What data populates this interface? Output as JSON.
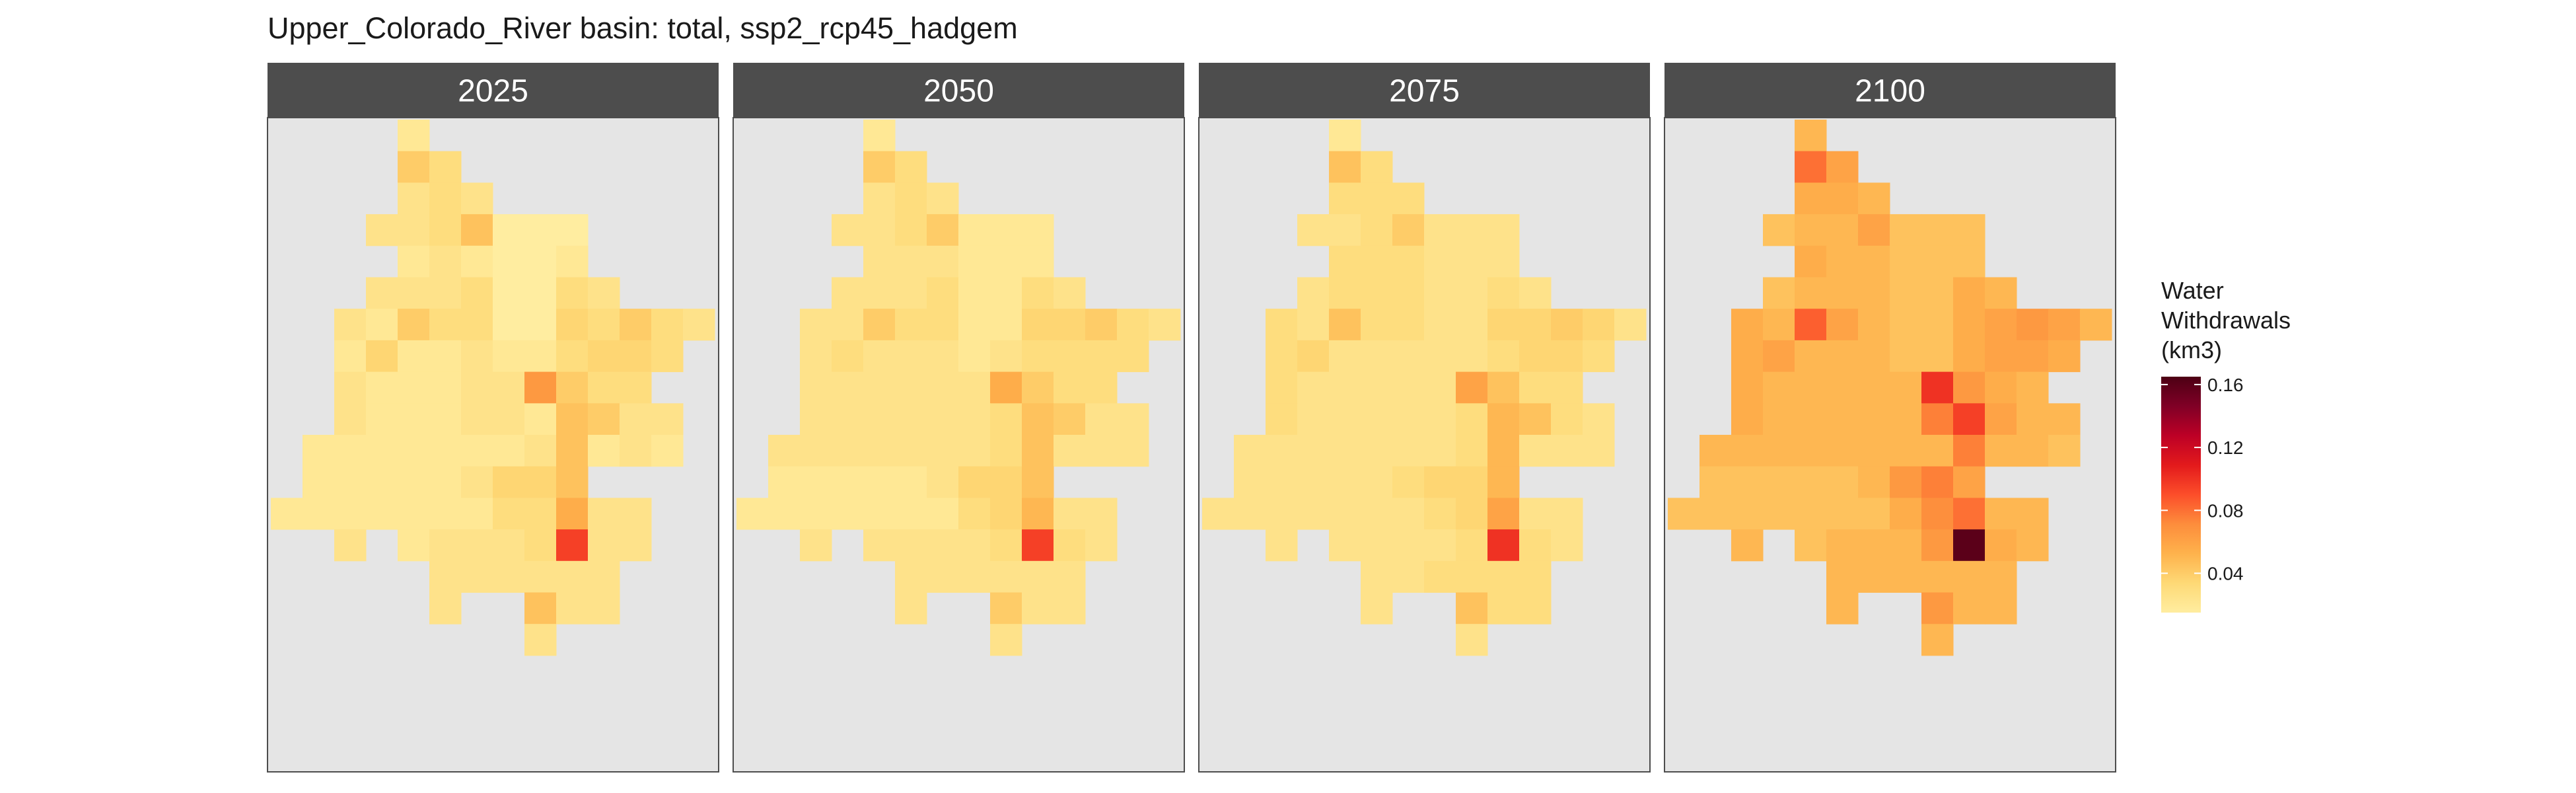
{
  "chart_data": {
    "type": "heatmap",
    "title": "Upper_Colorado_River basin: total, ssp2_rcp45_hadgem",
    "panels": [
      {
        "label": "2025",
        "values": [
          [
            null,
            null,
            null,
            null,
            0.02,
            null,
            null,
            null,
            null,
            null,
            null,
            null
          ],
          [
            null,
            null,
            null,
            null,
            0.04,
            0.03,
            null,
            null,
            null,
            null,
            null,
            null
          ],
          [
            null,
            null,
            null,
            null,
            0.025,
            0.03,
            0.025,
            null,
            null,
            null,
            null,
            null
          ],
          [
            null,
            null,
            null,
            0.025,
            0.025,
            0.03,
            0.045,
            0.015,
            0.015,
            0.015,
            null,
            null
          ],
          [
            null,
            null,
            null,
            null,
            0.02,
            0.025,
            0.02,
            0.015,
            0.015,
            0.02,
            null,
            null
          ],
          [
            null,
            null,
            null,
            0.025,
            0.025,
            0.025,
            0.03,
            0.015,
            0.015,
            0.03,
            0.025,
            null
          ],
          [
            null,
            null,
            0.025,
            0.02,
            0.04,
            0.03,
            0.03,
            0.015,
            0.015,
            0.035,
            0.03,
            0.04,
            0.03,
            0.025
          ],
          [
            null,
            null,
            0.02,
            0.035,
            0.02,
            0.02,
            0.025,
            0.02,
            0.02,
            0.03,
            0.035,
            0.035,
            0.03,
            null
          ],
          [
            null,
            null,
            0.025,
            0.02,
            0.02,
            0.02,
            0.025,
            0.025,
            0.065,
            0.04,
            0.03,
            0.03,
            null,
            null
          ],
          [
            null,
            null,
            0.025,
            0.02,
            0.02,
            0.02,
            0.025,
            0.025,
            0.02,
            0.045,
            0.04,
            0.025,
            0.025,
            null
          ],
          [
            null,
            0.02,
            0.02,
            0.02,
            0.02,
            0.02,
            0.02,
            0.02,
            0.025,
            0.045,
            0.02,
            0.025,
            0.02,
            null
          ],
          [
            null,
            0.02,
            0.02,
            0.02,
            0.02,
            0.02,
            0.025,
            0.035,
            0.035,
            0.045,
            null,
            null,
            null,
            null
          ],
          [
            0.02,
            0.02,
            0.02,
            0.02,
            0.02,
            0.02,
            0.02,
            0.03,
            0.03,
            0.055,
            0.025,
            0.025,
            null,
            null
          ],
          [
            null,
            null,
            0.025,
            null,
            0.02,
            0.025,
            0.025,
            0.025,
            0.03,
            0.095,
            0.025,
            0.025,
            null,
            null
          ],
          [
            null,
            null,
            null,
            null,
            null,
            0.025,
            0.025,
            0.025,
            0.025,
            0.025,
            0.025,
            null,
            null,
            null
          ],
          [
            null,
            null,
            null,
            null,
            null,
            0.025,
            null,
            null,
            0.045,
            0.025,
            0.025,
            null,
            null,
            null
          ],
          [
            null,
            null,
            null,
            null,
            null,
            null,
            null,
            null,
            0.025,
            null,
            null,
            null,
            null,
            null
          ]
        ]
      },
      {
        "label": "2050",
        "values": [
          [
            null,
            null,
            null,
            null,
            0.02,
            null,
            null,
            null,
            null,
            null,
            null,
            null
          ],
          [
            null,
            null,
            null,
            null,
            0.04,
            0.03,
            null,
            null,
            null,
            null,
            null,
            null
          ],
          [
            null,
            null,
            null,
            null,
            0.025,
            0.03,
            0.025,
            null,
            null,
            null,
            null,
            null
          ],
          [
            null,
            null,
            null,
            0.025,
            0.025,
            0.03,
            0.04,
            0.02,
            0.02,
            0.02,
            null,
            null
          ],
          [
            null,
            null,
            null,
            null,
            0.025,
            0.025,
            0.025,
            0.02,
            0.02,
            0.02,
            null,
            null
          ],
          [
            null,
            null,
            null,
            0.025,
            0.025,
            0.025,
            0.03,
            0.02,
            0.02,
            0.03,
            0.025,
            null
          ],
          [
            null,
            null,
            0.025,
            0.025,
            0.04,
            0.03,
            0.03,
            0.02,
            0.02,
            0.035,
            0.035,
            0.04,
            0.03,
            0.025
          ],
          [
            null,
            null,
            0.025,
            0.03,
            0.025,
            0.025,
            0.025,
            0.02,
            0.025,
            0.03,
            0.03,
            0.03,
            0.03,
            null
          ],
          [
            null,
            null,
            0.025,
            0.025,
            0.025,
            0.025,
            0.025,
            0.025,
            0.055,
            0.04,
            0.03,
            0.03,
            null,
            null
          ],
          [
            null,
            null,
            0.025,
            0.025,
            0.025,
            0.025,
            0.025,
            0.025,
            0.03,
            0.045,
            0.04,
            0.025,
            0.025,
            null
          ],
          [
            null,
            0.025,
            0.025,
            0.025,
            0.025,
            0.025,
            0.025,
            0.025,
            0.03,
            0.045,
            0.025,
            0.025,
            0.025,
            null
          ],
          [
            null,
            0.02,
            0.02,
            0.02,
            0.02,
            0.02,
            0.025,
            0.035,
            0.035,
            0.045,
            null,
            null,
            null,
            null
          ],
          [
            0.02,
            0.02,
            0.02,
            0.02,
            0.02,
            0.02,
            0.02,
            0.03,
            0.035,
            0.05,
            0.025,
            0.025,
            null,
            null
          ],
          [
            null,
            null,
            0.025,
            null,
            0.025,
            0.025,
            0.025,
            0.025,
            0.03,
            0.095,
            0.03,
            0.025,
            null,
            null
          ],
          [
            null,
            null,
            null,
            null,
            null,
            0.025,
            0.025,
            0.025,
            0.025,
            0.025,
            0.025,
            null,
            null,
            null
          ],
          [
            null,
            null,
            null,
            null,
            null,
            0.025,
            null,
            null,
            0.04,
            0.025,
            0.025,
            null,
            null,
            null
          ],
          [
            null,
            null,
            null,
            null,
            null,
            null,
            null,
            null,
            0.025,
            null,
            null,
            null,
            null,
            null
          ]
        ]
      },
      {
        "label": "2075",
        "values": [
          [
            null,
            null,
            null,
            null,
            0.02,
            null,
            null,
            null,
            null,
            null,
            null,
            null
          ],
          [
            null,
            null,
            null,
            null,
            0.045,
            0.03,
            null,
            null,
            null,
            null,
            null,
            null
          ],
          [
            null,
            null,
            null,
            null,
            0.03,
            0.03,
            0.03,
            null,
            null,
            null,
            null,
            null
          ],
          [
            null,
            null,
            null,
            0.025,
            0.025,
            0.03,
            0.04,
            0.025,
            0.025,
            0.025,
            null,
            null
          ],
          [
            null,
            null,
            null,
            null,
            0.03,
            0.03,
            0.03,
            0.025,
            0.025,
            0.025,
            null,
            null
          ],
          [
            null,
            null,
            null,
            0.025,
            0.03,
            0.03,
            0.03,
            0.025,
            0.025,
            0.03,
            0.025,
            null
          ],
          [
            null,
            null,
            0.03,
            0.025,
            0.045,
            0.03,
            0.03,
            0.025,
            0.025,
            0.035,
            0.035,
            0.04,
            0.035,
            0.025
          ],
          [
            null,
            null,
            0.03,
            0.035,
            0.025,
            0.025,
            0.025,
            0.025,
            0.025,
            0.03,
            0.035,
            0.035,
            0.03,
            null
          ],
          [
            null,
            null,
            0.03,
            0.025,
            0.025,
            0.025,
            0.025,
            0.025,
            0.06,
            0.045,
            0.03,
            0.03,
            null,
            null
          ],
          [
            null,
            null,
            0.03,
            0.025,
            0.025,
            0.025,
            0.025,
            0.025,
            0.03,
            0.05,
            0.045,
            0.03,
            0.025,
            null
          ],
          [
            null,
            0.025,
            0.025,
            0.025,
            0.025,
            0.025,
            0.025,
            0.025,
            0.03,
            0.05,
            0.025,
            0.025,
            0.025,
            null
          ],
          [
            null,
            0.025,
            0.025,
            0.025,
            0.025,
            0.025,
            0.03,
            0.035,
            0.035,
            0.05,
            null,
            null,
            null,
            null
          ],
          [
            0.025,
            0.025,
            0.025,
            0.025,
            0.025,
            0.025,
            0.025,
            0.03,
            0.035,
            0.06,
            0.025,
            0.025,
            null,
            null
          ],
          [
            null,
            null,
            0.025,
            null,
            0.025,
            0.025,
            0.025,
            0.025,
            0.03,
            0.1,
            0.03,
            0.025,
            null,
            null
          ],
          [
            null,
            null,
            null,
            null,
            null,
            0.025,
            0.025,
            0.03,
            0.03,
            0.03,
            0.03,
            null,
            null,
            null
          ],
          [
            null,
            null,
            null,
            null,
            null,
            0.025,
            null,
            null,
            0.045,
            0.03,
            0.03,
            null,
            null,
            null
          ],
          [
            null,
            null,
            null,
            null,
            null,
            null,
            null,
            null,
            0.025,
            null,
            null,
            null,
            null,
            null
          ]
        ]
      },
      {
        "label": "2100",
        "values": [
          [
            null,
            null,
            null,
            null,
            0.05,
            null,
            null,
            null,
            null,
            null,
            null,
            null
          ],
          [
            null,
            null,
            null,
            null,
            0.08,
            0.06,
            null,
            null,
            null,
            null,
            null,
            null
          ],
          [
            null,
            null,
            null,
            null,
            0.055,
            0.055,
            0.05,
            null,
            null,
            null,
            null,
            null
          ],
          [
            null,
            null,
            null,
            0.045,
            0.05,
            0.05,
            0.06,
            0.045,
            0.045,
            0.045,
            null,
            null
          ],
          [
            null,
            null,
            null,
            null,
            0.055,
            0.05,
            0.05,
            0.045,
            0.045,
            0.045,
            null,
            null
          ],
          [
            null,
            null,
            null,
            0.045,
            0.05,
            0.05,
            0.05,
            0.045,
            0.045,
            0.055,
            0.05,
            null
          ],
          [
            null,
            null,
            0.055,
            0.05,
            0.085,
            0.06,
            0.05,
            0.045,
            0.045,
            0.055,
            0.06,
            0.065,
            0.06,
            0.05
          ],
          [
            null,
            null,
            0.055,
            0.06,
            0.05,
            0.05,
            0.05,
            0.045,
            0.045,
            0.055,
            0.06,
            0.06,
            0.055,
            null
          ],
          [
            null,
            null,
            0.055,
            0.05,
            0.05,
            0.05,
            0.05,
            0.05,
            0.1,
            0.065,
            0.055,
            0.05,
            null,
            null
          ],
          [
            null,
            null,
            0.055,
            0.05,
            0.05,
            0.05,
            0.05,
            0.05,
            0.075,
            0.095,
            0.06,
            0.05,
            0.05,
            null
          ],
          [
            null,
            0.05,
            0.05,
            0.05,
            0.05,
            0.05,
            0.05,
            0.05,
            0.05,
            0.075,
            0.05,
            0.05,
            0.045,
            null
          ],
          [
            null,
            0.045,
            0.045,
            0.045,
            0.045,
            0.045,
            0.05,
            0.065,
            0.075,
            0.06,
            null,
            null,
            null,
            null
          ],
          [
            0.045,
            0.045,
            0.045,
            0.045,
            0.045,
            0.045,
            0.045,
            0.055,
            0.07,
            0.08,
            0.05,
            0.05,
            null,
            null
          ],
          [
            null,
            null,
            0.05,
            null,
            0.045,
            0.05,
            0.05,
            0.05,
            0.065,
            0.16,
            0.055,
            0.05,
            null,
            null
          ],
          [
            null,
            null,
            null,
            null,
            null,
            0.05,
            0.05,
            0.05,
            0.05,
            0.05,
            0.05,
            null,
            null,
            null
          ],
          [
            null,
            null,
            null,
            null,
            null,
            0.05,
            null,
            null,
            0.065,
            0.05,
            0.05,
            null,
            null,
            null
          ],
          [
            null,
            null,
            null,
            null,
            null,
            null,
            null,
            null,
            0.05,
            null,
            null,
            null,
            null,
            null
          ]
        ]
      }
    ],
    "legend": {
      "title_lines": [
        "Water",
        "Withdrawals",
        "(km3)"
      ],
      "ticks": [
        0.04,
        0.08,
        0.12,
        0.16
      ],
      "tick_labels": [
        "0.04",
        "0.08",
        "0.12",
        "0.16"
      ],
      "range": [
        0.015,
        0.165
      ],
      "placement": "right"
    },
    "colors": [
      "#FFEDA0",
      "#FED976",
      "#FEB24C",
      "#FD8D3C",
      "#FC4E2A",
      "#E31A1C",
      "#BD0026",
      "#800026",
      "#4D0014"
    ],
    "panel_background": "#E5E5E5",
    "strip_background": "#4D4D4D",
    "grid": false
  }
}
